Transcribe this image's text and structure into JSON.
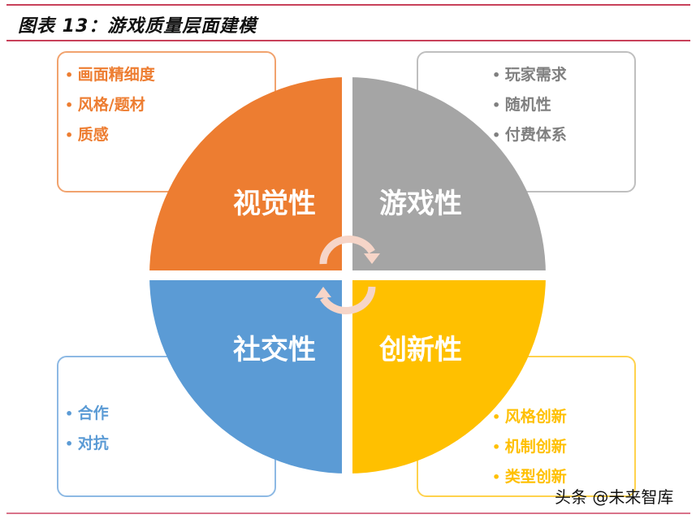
{
  "title": "图表 13：游戏质量层面建模",
  "quadrants": [
    {
      "label": "视觉性",
      "color": "#ED7D31",
      "items": [
        "画面精细度",
        "风格/题材",
        "质感"
      ]
    },
    {
      "label": "游戏性",
      "color": "#A5A5A5",
      "items": [
        "玩家需求",
        "随机性",
        "付费体系"
      ]
    },
    {
      "label": "社交性",
      "color": "#5B9BD5",
      "items": [
        "合作",
        "对抗"
      ]
    },
    {
      "label": "创新性",
      "color": "#FFC000",
      "items": [
        "风格创新",
        "机制创新",
        "类型创新"
      ]
    }
  ],
  "watermark": "头条 @未来智库"
}
